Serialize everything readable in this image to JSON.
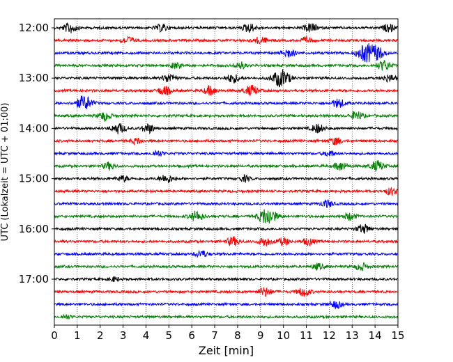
{
  "chart_data": {
    "type": "line",
    "subtype": "helicorder",
    "title": "",
    "xlabel": "Zeit  [min]",
    "ylabel": "UTC (Lokalzeit = UTC + 01:00)",
    "xlim": [
      0,
      15
    ],
    "x_ticks": [
      0,
      1,
      2,
      3,
      4,
      5,
      6,
      7,
      8,
      9,
      10,
      11,
      12,
      13,
      14,
      15
    ],
    "y_tick_labels": [
      "12:00",
      "13:00",
      "14:00",
      "15:00",
      "16:00",
      "17:00"
    ],
    "minutes_per_line": 15,
    "start_time": "12:00",
    "line_colors": [
      "#000000",
      "#ff0000",
      "#0000ff",
      "#008000"
    ],
    "grid": "vertical dotted",
    "traces": [
      {
        "start": "12:00",
        "color": "black",
        "events": [
          [
            0.7,
            7
          ],
          [
            4.7,
            5
          ],
          [
            8.5,
            6
          ],
          [
            11.2,
            6
          ],
          [
            14.6,
            5
          ]
        ]
      },
      {
        "start": "12:15",
        "color": "red",
        "events": [
          [
            3.2,
            5
          ],
          [
            9,
            5
          ],
          [
            11,
            4
          ]
        ]
      },
      {
        "start": "12:30",
        "color": "blue",
        "events": [
          [
            10.2,
            6
          ],
          [
            13.6,
            12
          ],
          [
            14.1,
            8
          ]
        ]
      },
      {
        "start": "12:45",
        "color": "green",
        "events": [
          [
            5.3,
            4
          ],
          [
            8.1,
            5
          ],
          [
            14.4,
            7
          ]
        ]
      },
      {
        "start": "13:00",
        "color": "black",
        "events": [
          [
            5,
            6
          ],
          [
            7.8,
            6
          ],
          [
            9.9,
            12
          ],
          [
            14.6,
            5
          ]
        ]
      },
      {
        "start": "13:15",
        "color": "red",
        "events": [
          [
            4.8,
            6
          ],
          [
            6.8,
            6
          ],
          [
            8.6,
            7
          ]
        ]
      },
      {
        "start": "13:30",
        "color": "blue",
        "events": [
          [
            1.3,
            10
          ],
          [
            12.4,
            6
          ]
        ]
      },
      {
        "start": "13:45",
        "color": "green",
        "events": [
          [
            2.2,
            6
          ],
          [
            13.2,
            6
          ]
        ]
      },
      {
        "start": "14:00",
        "color": "black",
        "events": [
          [
            2.8,
            7
          ],
          [
            4.1,
            6
          ],
          [
            11.5,
            6
          ]
        ]
      },
      {
        "start": "14:15",
        "color": "red",
        "events": [
          [
            3.6,
            4
          ],
          [
            12.3,
            5
          ]
        ]
      },
      {
        "start": "14:30",
        "color": "blue",
        "events": [
          [
            4.5,
            4
          ],
          [
            12,
            4
          ]
        ]
      },
      {
        "start": "14:45",
        "color": "green",
        "events": [
          [
            2.4,
            5
          ],
          [
            12.5,
            6
          ],
          [
            14.1,
            7
          ]
        ]
      },
      {
        "start": "15:00",
        "color": "black",
        "events": [
          [
            3,
            4
          ],
          [
            4.9,
            6
          ],
          [
            8.3,
            4
          ]
        ]
      },
      {
        "start": "15:15",
        "color": "red",
        "events": [
          [
            14.7,
            5
          ]
        ]
      },
      {
        "start": "15:30",
        "color": "blue",
        "events": [
          [
            11.9,
            5
          ]
        ]
      },
      {
        "start": "15:45",
        "color": "green",
        "events": [
          [
            6.2,
            7
          ],
          [
            9.3,
            12
          ],
          [
            12.9,
            5
          ]
        ]
      },
      {
        "start": "16:00",
        "color": "black",
        "events": [
          [
            13.5,
            6
          ]
        ]
      },
      {
        "start": "16:15",
        "color": "red",
        "events": [
          [
            7.8,
            6
          ],
          [
            9.2,
            6
          ],
          [
            10,
            5
          ],
          [
            11.1,
            5
          ]
        ]
      },
      {
        "start": "16:30",
        "color": "blue",
        "events": [
          [
            6.4,
            5
          ]
        ]
      },
      {
        "start": "16:45",
        "color": "green",
        "events": [
          [
            11.5,
            4
          ],
          [
            13.4,
            5
          ]
        ]
      },
      {
        "start": "17:00",
        "color": "black",
        "events": [
          [
            2.6,
            3
          ]
        ]
      },
      {
        "start": "17:15",
        "color": "red",
        "events": [
          [
            9.2,
            6
          ],
          [
            10.9,
            6
          ]
        ]
      },
      {
        "start": "17:30",
        "color": "blue",
        "events": [
          [
            12.3,
            5
          ]
        ]
      },
      {
        "start": "17:45",
        "color": "green",
        "events": [
          [
            0.5,
            3
          ]
        ]
      }
    ]
  }
}
